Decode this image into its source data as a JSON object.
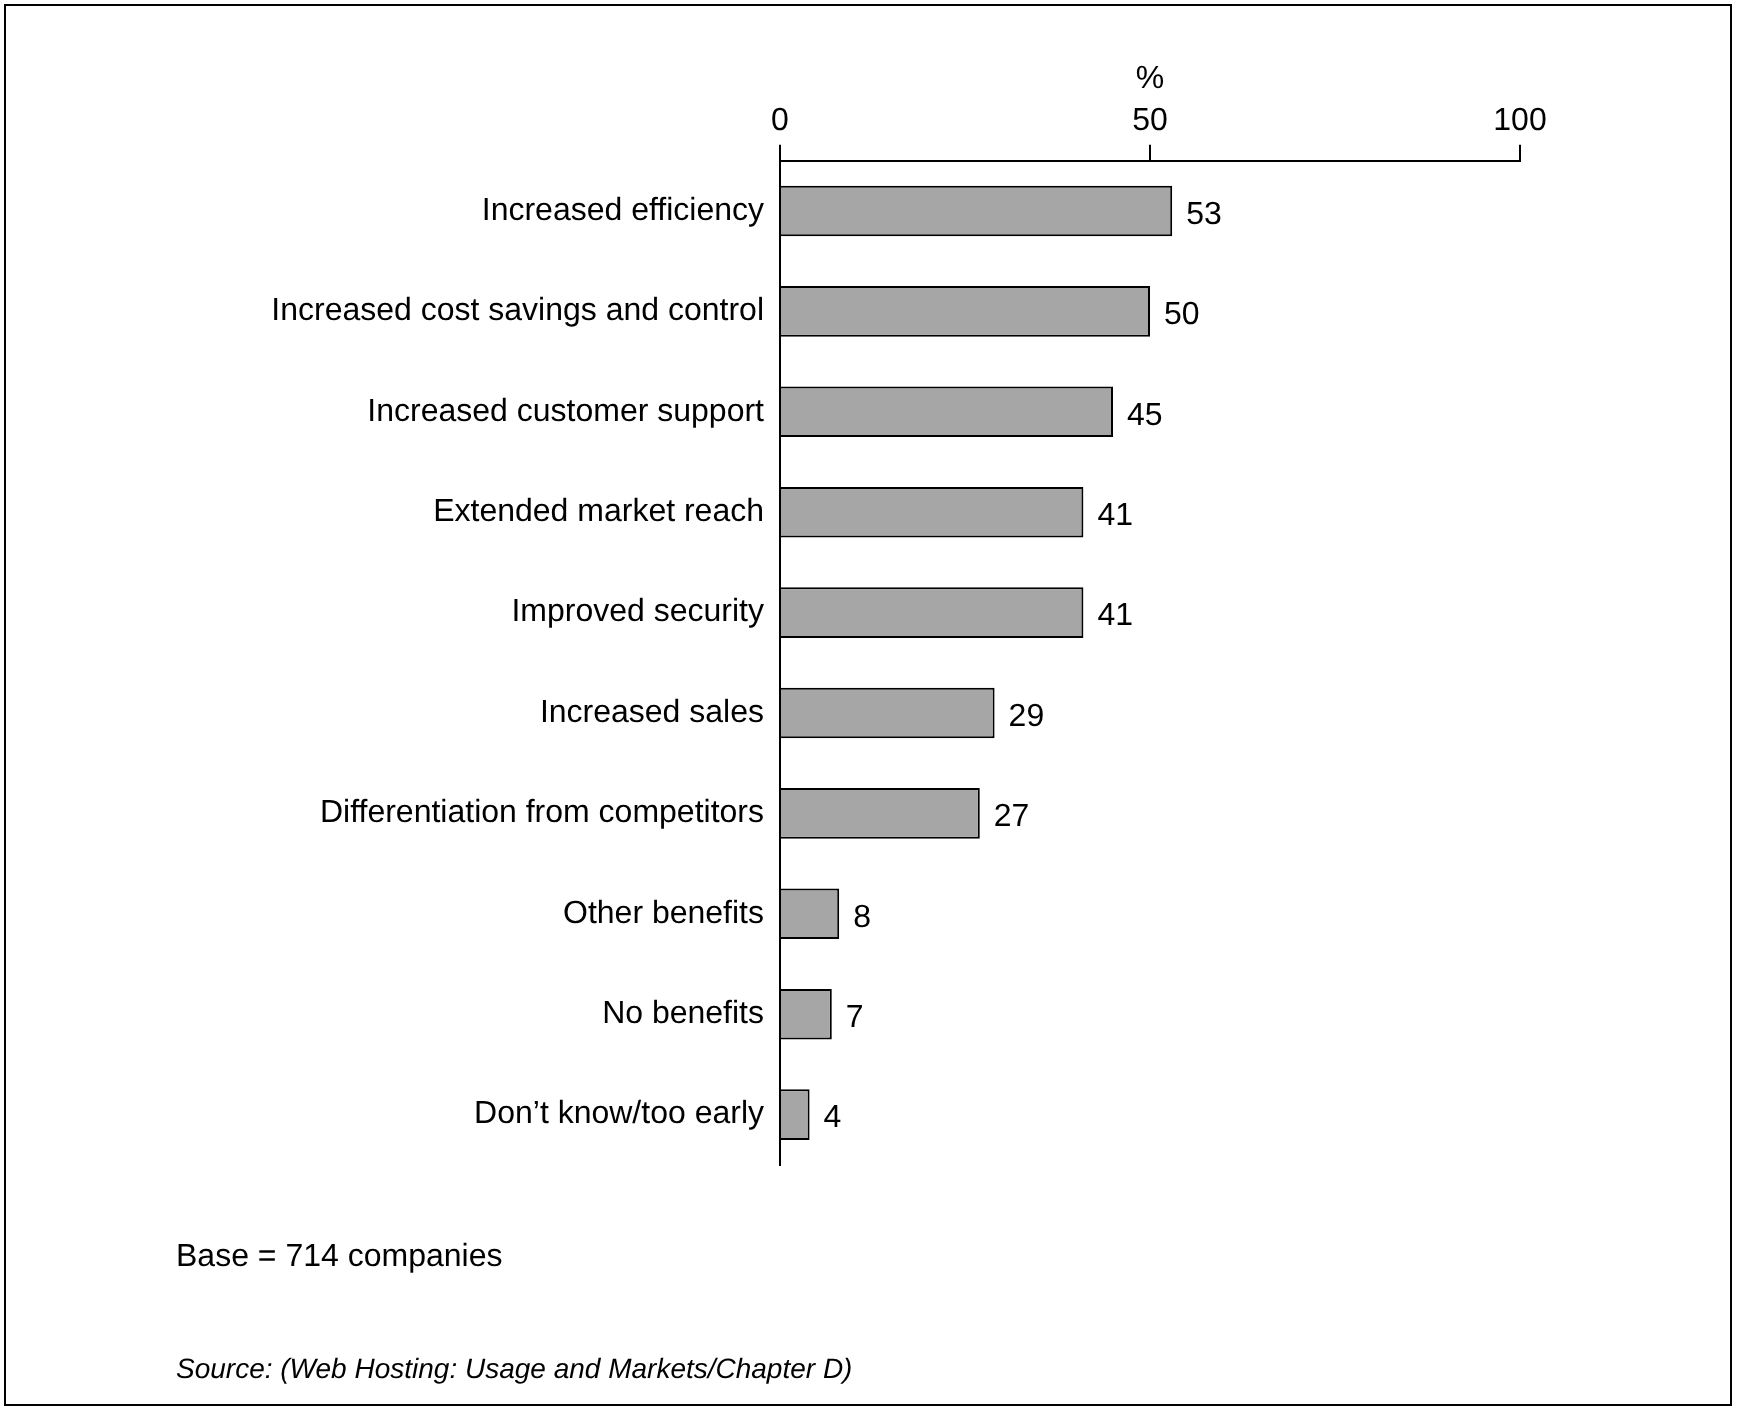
{
  "chart_data": {
    "type": "bar",
    "orientation": "horizontal",
    "xlabel": "%",
    "categories": [
      "Increased efficiency",
      "Increased cost savings and control",
      "Increased customer support",
      "Extended market reach",
      "Improved security",
      "Increased sales",
      "Differentiation from competitors",
      "Other benefits",
      "No benefits",
      "Don’t know/too early"
    ],
    "values": [
      53,
      50,
      45,
      41,
      41,
      29,
      27,
      8,
      7,
      4
    ],
    "color": "#a6a6a6",
    "xlim": [
      0,
      100
    ],
    "xticks": [
      0,
      50,
      100
    ],
    "grid": false,
    "legend": false,
    "data_labels": true,
    "annotations": [
      "Base = 714 companies",
      "Source: (Web Hosting: Usage and Markets/Chapter D)"
    ]
  }
}
